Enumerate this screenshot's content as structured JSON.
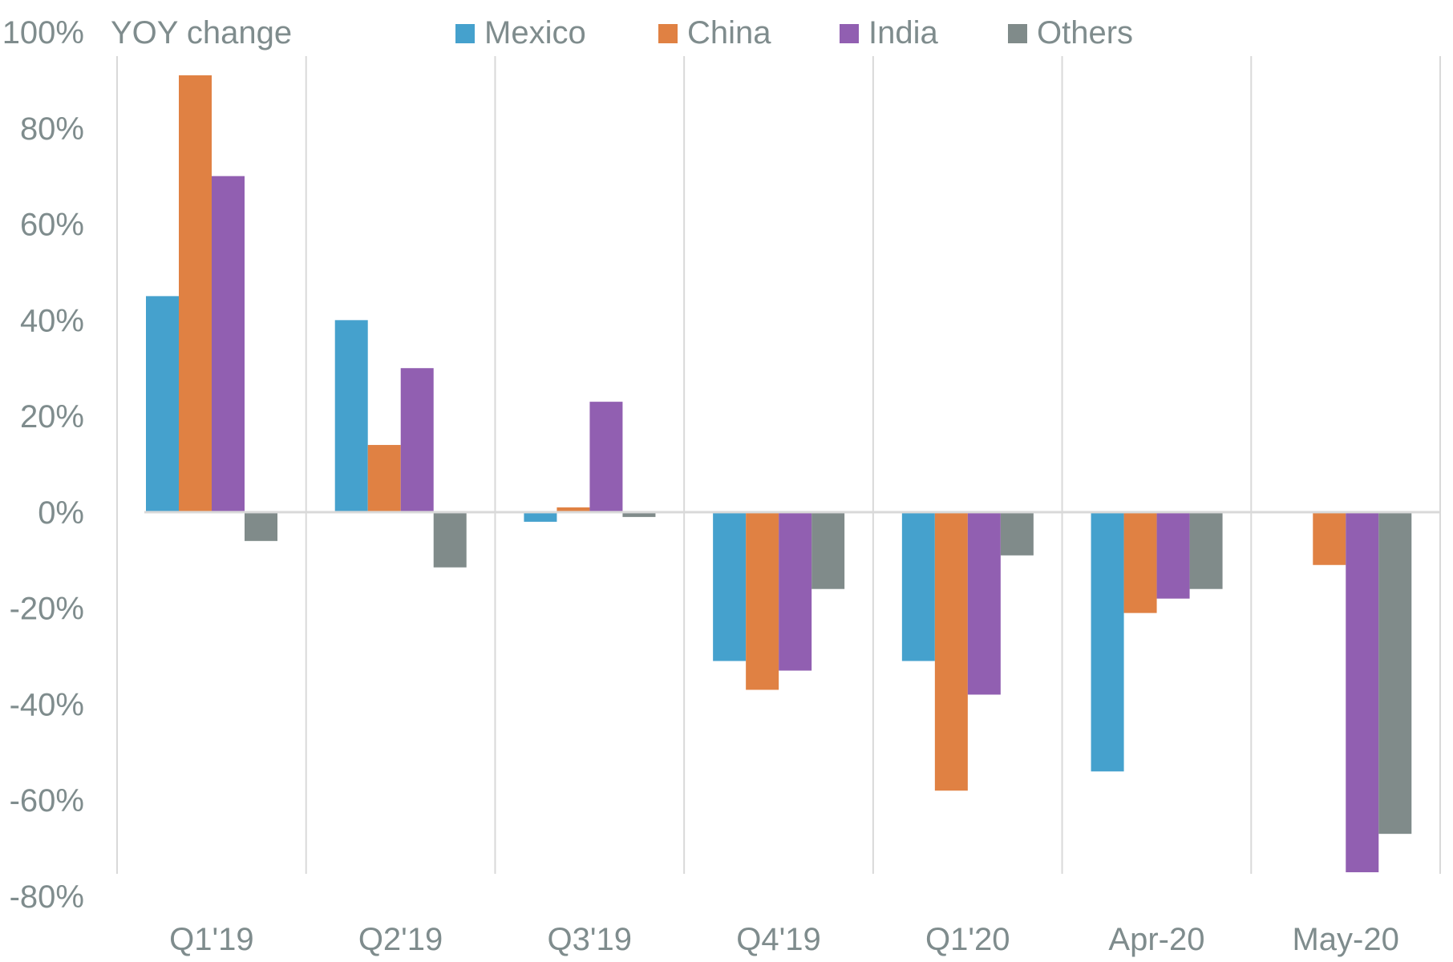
{
  "chart_data": {
    "type": "bar",
    "title": "",
    "ylabel": "YOY change",
    "xlabel": "",
    "ylim": [
      -80,
      100
    ],
    "yticks": [
      100,
      80,
      60,
      40,
      20,
      0,
      -20,
      -40,
      -60,
      -80
    ],
    "ytick_labels": [
      "100%",
      "80%",
      "60%",
      "40%",
      "20%",
      "0%",
      "-20%",
      "-40%",
      "-60%",
      "-80%"
    ],
    "categories": [
      "Q1'19",
      "Q2'19",
      "Q3'19",
      "Q4'19",
      "Q1'20",
      "Apr-20",
      "May-20"
    ],
    "legend_position": "top",
    "series": [
      {
        "name": "Mexico",
        "color": "#45a1cd",
        "values": [
          45,
          40,
          -2,
          -31,
          -31,
          -54,
          0
        ]
      },
      {
        "name": "China",
        "color": "#e08143",
        "values": [
          91,
          14,
          1,
          -37,
          -58,
          -21,
          -11
        ]
      },
      {
        "name": "India",
        "color": "#915fb1",
        "values": [
          70,
          30,
          23,
          -33,
          -38,
          -18,
          -75
        ]
      },
      {
        "name": "Others",
        "color": "#808b8a",
        "values": [
          -6,
          -11.5,
          -1,
          -16,
          -9,
          -16,
          -67
        ]
      }
    ]
  }
}
